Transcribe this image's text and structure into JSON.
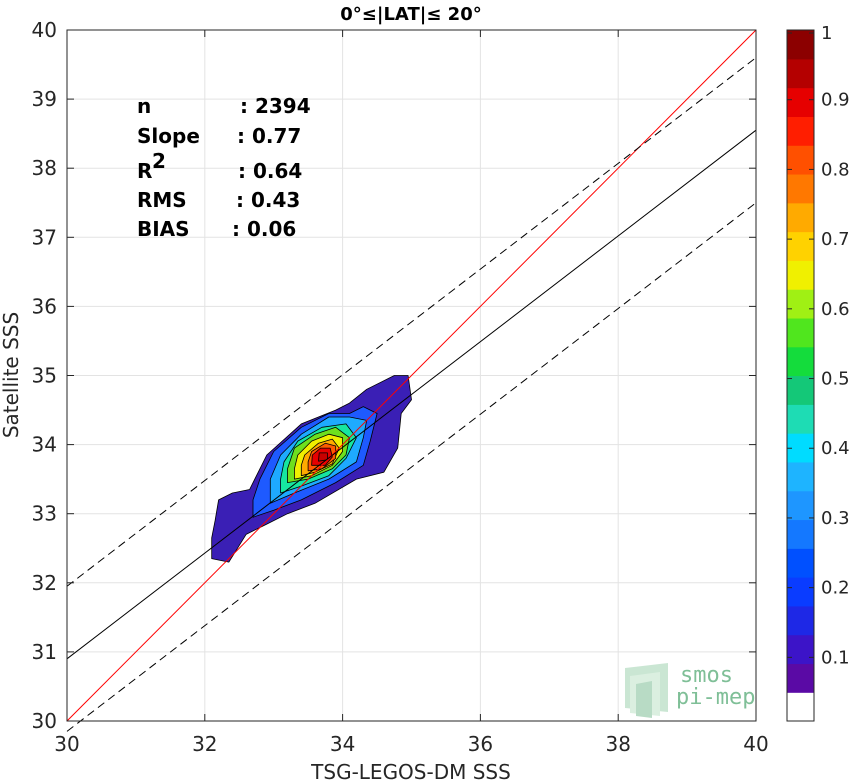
{
  "chart_data": {
    "type": "contour",
    "title": "0°≤|LAT|≤ 20°",
    "xlabel": "TSG-LEGOS-DM SSS",
    "ylabel": "Satellite SSS",
    "xlim": [
      30,
      40
    ],
    "ylim": [
      30,
      40
    ],
    "xticks": [
      "30",
      "32",
      "34",
      "36",
      "38",
      "40"
    ],
    "yticks": [
      "30",
      "31",
      "32",
      "33",
      "34",
      "35",
      "36",
      "37",
      "38",
      "39",
      "40"
    ],
    "grid": true,
    "stats": [
      {
        "label": "n",
        "value": ": 2394"
      },
      {
        "label": "Slope",
        "value": ": 0.77"
      },
      {
        "label": "R",
        "sup": "2",
        "value": ": 0.64"
      },
      {
        "label": "RMS",
        "value": ": 0.43"
      },
      {
        "label": "BIAS",
        "value": ": 0.06"
      }
    ],
    "lines": [
      {
        "name": "identity",
        "color": "#ff0000",
        "dash": false,
        "x": [
          30,
          40
        ],
        "y": [
          30,
          40
        ]
      },
      {
        "name": "regression",
        "color": "#000000",
        "dash": false,
        "x": [
          30,
          40
        ],
        "y": [
          30.9,
          38.55
        ]
      },
      {
        "name": "upper bound",
        "color": "#000000",
        "dash": true,
        "x": [
          30,
          40
        ],
        "y": [
          31.95,
          39.6
        ]
      },
      {
        "name": "lower bound",
        "color": "#000000",
        "dash": true,
        "x": [
          30,
          40
        ],
        "y": [
          29.85,
          37.5
        ]
      }
    ],
    "contours": [
      {
        "level": 0.05,
        "color": "#3a1fb5",
        "points": [
          [
            32.1,
            32.35
          ],
          [
            32.35,
            32.3
          ],
          [
            32.6,
            32.7
          ],
          [
            32.9,
            32.85
          ],
          [
            33.2,
            33.0
          ],
          [
            33.6,
            33.15
          ],
          [
            34.2,
            33.5
          ],
          [
            34.6,
            33.6
          ],
          [
            34.8,
            33.95
          ],
          [
            34.85,
            34.45
          ],
          [
            35.0,
            34.65
          ],
          [
            34.95,
            35.0
          ],
          [
            34.75,
            35.0
          ],
          [
            34.35,
            34.8
          ],
          [
            34.1,
            34.6
          ],
          [
            33.9,
            34.5
          ],
          [
            33.4,
            34.3
          ],
          [
            32.9,
            33.85
          ],
          [
            32.65,
            33.35
          ],
          [
            32.4,
            33.3
          ],
          [
            32.2,
            33.2
          ],
          [
            32.15,
            32.9
          ],
          [
            32.1,
            32.65
          ]
        ]
      },
      {
        "level": 0.15,
        "color": "#1e5aff",
        "points": [
          [
            32.7,
            32.95
          ],
          [
            33.0,
            33.05
          ],
          [
            33.4,
            33.2
          ],
          [
            33.9,
            33.45
          ],
          [
            34.3,
            33.7
          ],
          [
            34.4,
            34.05
          ],
          [
            34.5,
            34.45
          ],
          [
            34.3,
            34.55
          ],
          [
            34.1,
            34.45
          ],
          [
            33.8,
            34.45
          ],
          [
            33.4,
            34.25
          ],
          [
            33.0,
            33.9
          ],
          [
            32.8,
            33.5
          ],
          [
            32.7,
            33.2
          ]
        ]
      },
      {
        "level": 0.3,
        "color": "#1eaaff",
        "points": [
          [
            32.95,
            33.15
          ],
          [
            33.3,
            33.3
          ],
          [
            33.8,
            33.5
          ],
          [
            34.2,
            33.75
          ],
          [
            34.3,
            34.1
          ],
          [
            34.35,
            34.35
          ],
          [
            34.1,
            34.4
          ],
          [
            33.8,
            34.4
          ],
          [
            33.4,
            34.15
          ],
          [
            33.1,
            33.85
          ],
          [
            32.95,
            33.5
          ]
        ]
      },
      {
        "level": 0.45,
        "color": "#16e6a0",
        "points": [
          [
            33.1,
            33.3
          ],
          [
            33.4,
            33.4
          ],
          [
            33.8,
            33.55
          ],
          [
            34.05,
            33.8
          ],
          [
            34.2,
            34.1
          ],
          [
            34.05,
            34.3
          ],
          [
            33.7,
            34.25
          ],
          [
            33.35,
            34.05
          ],
          [
            33.15,
            33.75
          ],
          [
            33.1,
            33.5
          ]
        ]
      },
      {
        "level": 0.55,
        "color": "#6ee01e",
        "points": [
          [
            33.2,
            33.45
          ],
          [
            33.5,
            33.5
          ],
          [
            33.85,
            33.65
          ],
          [
            34.05,
            33.85
          ],
          [
            34.1,
            34.1
          ],
          [
            33.9,
            34.25
          ],
          [
            33.6,
            34.15
          ],
          [
            33.3,
            33.95
          ],
          [
            33.2,
            33.65
          ]
        ]
      },
      {
        "level": 0.6,
        "color": "#f0f000",
        "points": [
          [
            33.3,
            33.5
          ],
          [
            33.55,
            33.55
          ],
          [
            33.85,
            33.7
          ],
          [
            34.0,
            33.9
          ],
          [
            34.0,
            34.1
          ],
          [
            33.8,
            34.15
          ],
          [
            33.55,
            34.05
          ],
          [
            33.35,
            33.85
          ],
          [
            33.3,
            33.65
          ]
        ]
      },
      {
        "level": 0.7,
        "color": "#ffaa00",
        "points": [
          [
            33.4,
            33.55
          ],
          [
            33.6,
            33.6
          ],
          [
            33.85,
            33.72
          ],
          [
            33.95,
            33.95
          ],
          [
            33.85,
            34.08
          ],
          [
            33.65,
            34.02
          ],
          [
            33.45,
            33.85
          ],
          [
            33.4,
            33.7
          ]
        ]
      },
      {
        "level": 0.8,
        "color": "#ff5a00",
        "points": [
          [
            33.5,
            33.62
          ],
          [
            33.7,
            33.65
          ],
          [
            33.9,
            33.8
          ],
          [
            33.9,
            33.98
          ],
          [
            33.75,
            34.02
          ],
          [
            33.55,
            33.9
          ],
          [
            33.5,
            33.75
          ]
        ]
      },
      {
        "level": 0.9,
        "color": "#e60000",
        "points": [
          [
            33.55,
            33.7
          ],
          [
            33.75,
            33.7
          ],
          [
            33.85,
            33.82
          ],
          [
            33.82,
            33.95
          ],
          [
            33.68,
            33.95
          ],
          [
            33.56,
            33.85
          ]
        ]
      },
      {
        "level": 0.95,
        "color": "#c80000",
        "points": [
          [
            33.65,
            33.76
          ],
          [
            33.78,
            33.78
          ],
          [
            33.78,
            33.88
          ],
          [
            33.66,
            33.88
          ]
        ]
      }
    ],
    "colorbar": {
      "ticks": [
        "0.1",
        "0.2",
        "0.3",
        "0.4",
        "0.5",
        "0.6",
        "0.7",
        "0.8",
        "0.9",
        "1"
      ],
      "colors": [
        "#ffffff",
        "#5a0aa5",
        "#3c14c8",
        "#1e28e6",
        "#0a3cff",
        "#0050ff",
        "#1478ff",
        "#1e96ff",
        "#1eb4ff",
        "#00dcff",
        "#1edcb4",
        "#14c878",
        "#14dc3c",
        "#50e61e",
        "#a0f014",
        "#f0f000",
        "#ffd200",
        "#ffaa00",
        "#ff7800",
        "#ff5000",
        "#ff1e00",
        "#e60000",
        "#b40000",
        "#8c0000"
      ]
    }
  },
  "logo": {
    "line1": "smos",
    "line2": "pi-mep"
  }
}
